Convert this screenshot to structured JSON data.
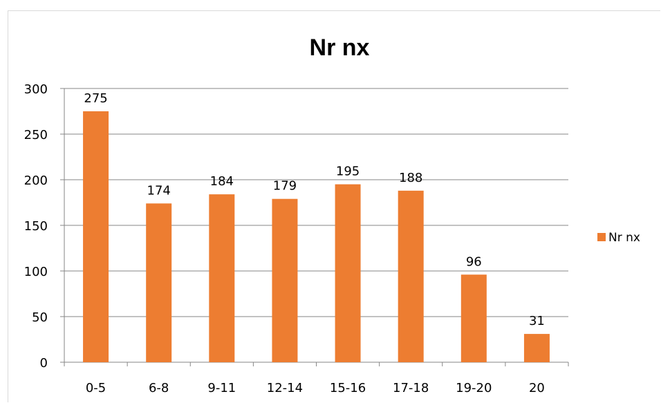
{
  "chart_data": {
    "type": "bar",
    "title": "Nr nx",
    "xlabel": "",
    "ylabel": "",
    "categories": [
      "0-5",
      "6-8",
      "9-11",
      "12-14",
      "15-16",
      "17-18",
      "19-20",
      "20"
    ],
    "series": [
      {
        "name": "Nr nx",
        "values": [
          275,
          174,
          184,
          179,
          195,
          188,
          96,
          31
        ],
        "color": "#ED7D31"
      }
    ],
    "ylim": [
      0,
      300
    ],
    "yticks": [
      0,
      50,
      100,
      150,
      200,
      250,
      300
    ],
    "grid": true,
    "legend": "right"
  }
}
